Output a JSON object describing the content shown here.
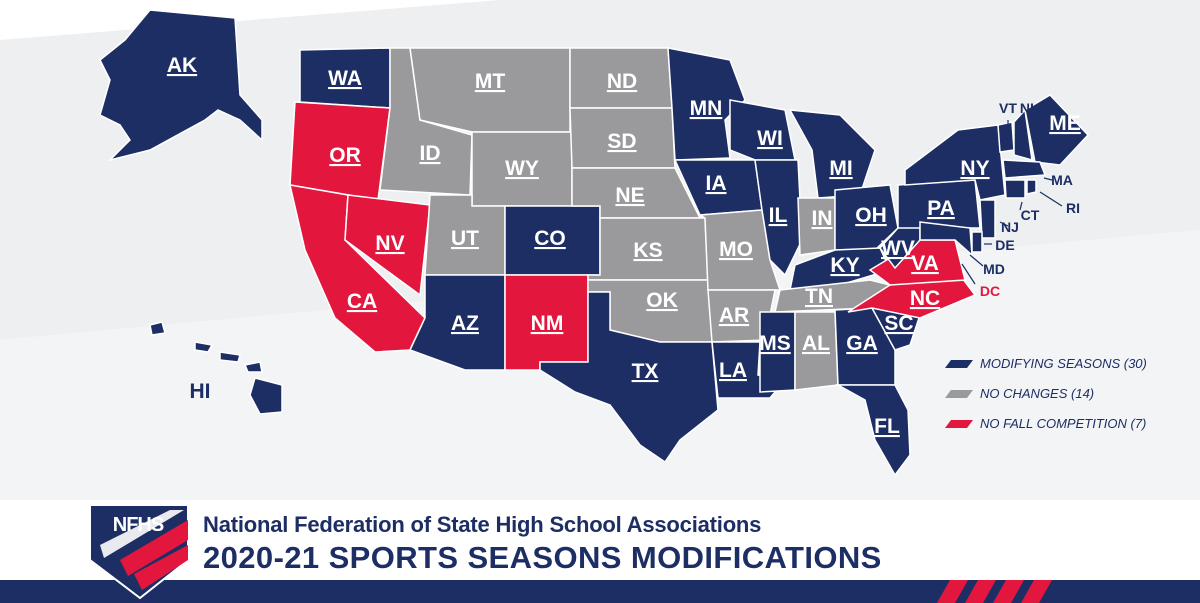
{
  "colors": {
    "modifying": "#1c2e64",
    "no_changes": "#9a9a9c",
    "no_fall": "#e3173e",
    "background_band": "#eeeff1",
    "title": "#1c2e64"
  },
  "header": {
    "organization": "National Federation of State High School Associations",
    "title": "2020-21 SPORTS SEASONS MODIFICATIONS",
    "logo_text": "NFHS"
  },
  "legend": [
    {
      "label": "MODIFYING SEASONS (30)",
      "category": "modifying"
    },
    {
      "label": "NO CHANGES (14)",
      "category": "no_changes"
    },
    {
      "label": "NO FALL COMPETITION (7)",
      "category": "no_fall"
    }
  ],
  "states": {
    "AK": "modifying",
    "WA": "modifying",
    "OR": "no_fall",
    "CA": "no_fall",
    "NV": "no_fall",
    "ID": "no_changes",
    "MT": "no_changes",
    "WY": "no_changes",
    "UT": "no_changes",
    "CO": "modifying",
    "AZ": "modifying",
    "NM": "no_fall",
    "ND": "no_changes",
    "SD": "no_changes",
    "NE": "no_changes",
    "KS": "no_changes",
    "OK": "no_changes",
    "TX": "modifying",
    "MN": "modifying",
    "IA": "modifying",
    "MO": "no_changes",
    "AR": "no_changes",
    "LA": "modifying",
    "WI": "modifying",
    "IL": "modifying",
    "MI": "modifying",
    "IN": "no_changes",
    "OH": "modifying",
    "KY": "modifying",
    "TN": "no_changes",
    "MS": "modifying",
    "AL": "no_changes",
    "GA": "modifying",
    "FL": "modifying",
    "SC": "modifying",
    "NC": "no_fall",
    "VA": "no_fall",
    "WV": "modifying",
    "PA": "modifying",
    "NY": "modifying",
    "ME": "modifying",
    "VT": "modifying",
    "NH": "modifying",
    "MA": "modifying",
    "RI": "modifying",
    "CT": "modifying",
    "NJ": "modifying",
    "DE": "modifying",
    "MD": "modifying",
    "DC": "no_fall",
    "HI": "modifying"
  },
  "callouts": {
    "VT": "VT",
    "NH": "NH",
    "MA": "MA",
    "RI": "RI",
    "CT": "CT",
    "NJ": "NJ",
    "DE": "DE",
    "MD": "MD",
    "DC": "DC",
    "HI": "HI"
  }
}
